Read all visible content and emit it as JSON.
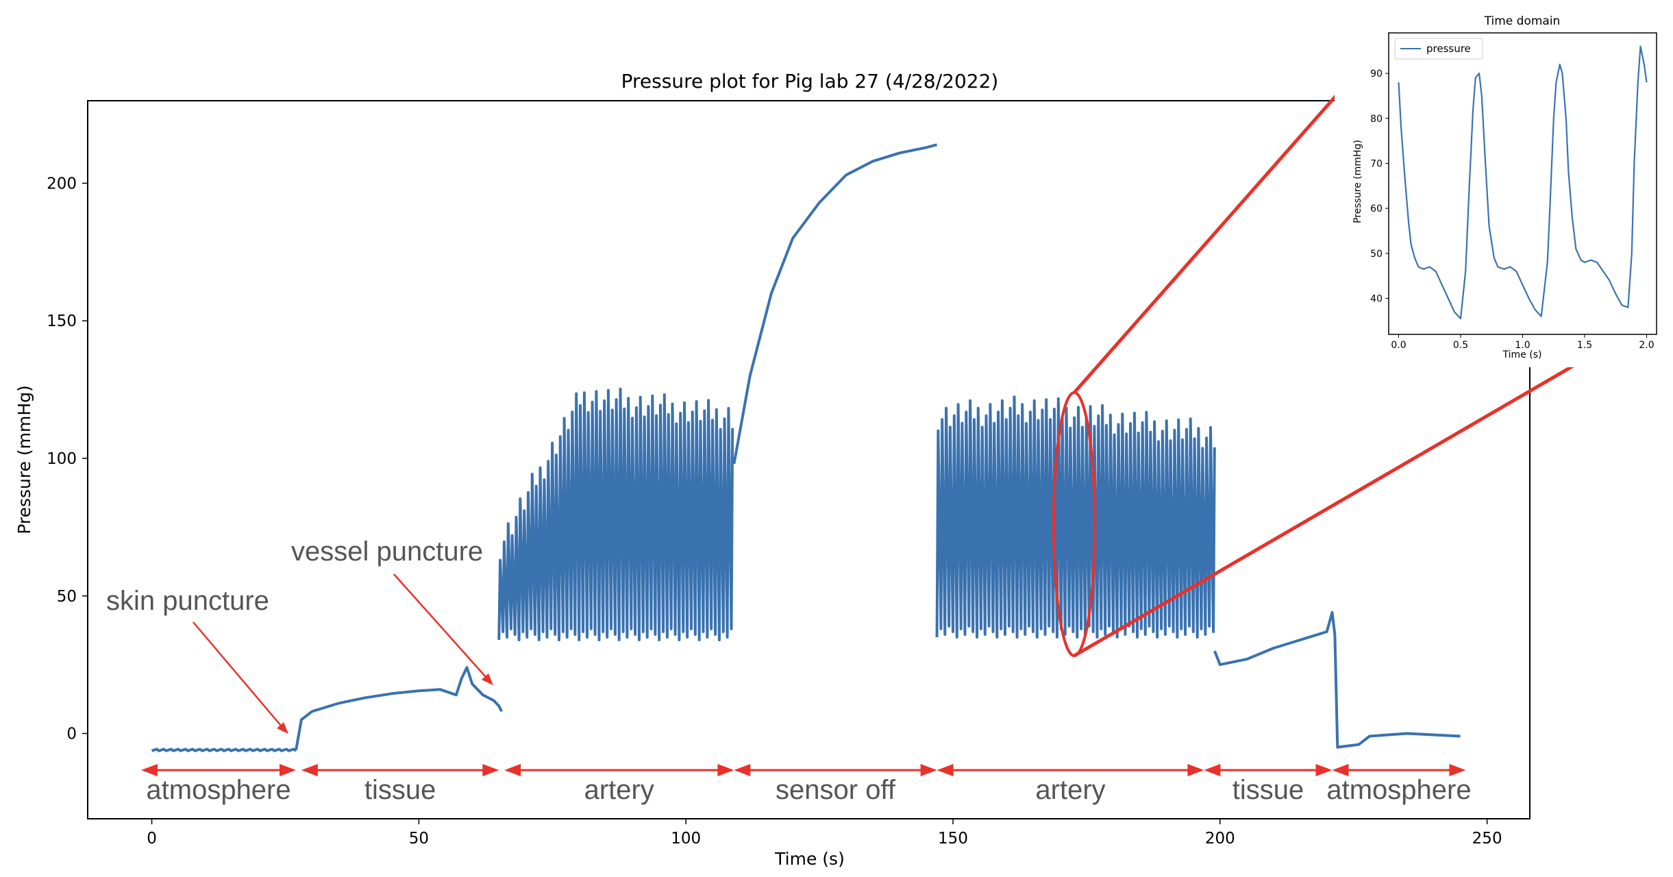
{
  "colors": {
    "line": "#3a72b0",
    "annotation": "#e8312a",
    "annotation_text": "#555555",
    "axis": "#000000"
  },
  "chart_data": [
    {
      "type": "line",
      "title": "Pressure plot for Pig lab 27 (4/28/2022)",
      "xlabel": "Time (s)",
      "ylabel": "Pressure (mmHg)",
      "xlim": [
        -12,
        258
      ],
      "ylim": [
        -31,
        230
      ],
      "xticks": [
        0,
        50,
        100,
        150,
        200,
        250
      ],
      "yticks": [
        0,
        50,
        100,
        150,
        200
      ],
      "grid": false,
      "series": [
        {
          "segments": [
            {
              "phase": "atmosphere",
              "t_start": 0,
              "t_end": 27,
              "baseline": -6
            },
            {
              "phase": "tissue",
              "t_start": 27,
              "t_end": 65,
              "points": [
                [
                  27,
                  -6
                ],
                [
                  28,
                  5
                ],
                [
                  30,
                  8
                ],
                [
                  35,
                  11
                ],
                [
                  40,
                  13
                ],
                [
                  45,
                  14.5
                ],
                [
                  50,
                  15.5
                ],
                [
                  54,
                  16
                ],
                [
                  57,
                  14
                ],
                [
                  58,
                  20
                ],
                [
                  59,
                  24
                ],
                [
                  60,
                  18
                ],
                [
                  62,
                  14
                ],
                [
                  64,
                  12
                ],
                [
                  65,
                  10
                ],
                [
                  65.5,
                  8
                ]
              ]
            },
            {
              "phase": "artery",
              "t_start": 65,
              "t_end": 109,
              "systolic_start": 68,
              "systolic_peak": 122,
              "systolic_end": 115,
              "diastolic": 36,
              "beat_period": 0.75
            },
            {
              "phase": "sensor off",
              "t_start": 109,
              "t_end": 147,
              "points": [
                [
                  109,
                  98
                ],
                [
                  112,
                  130
                ],
                [
                  116,
                  160
                ],
                [
                  120,
                  180
                ],
                [
                  125,
                  193
                ],
                [
                  130,
                  203
                ],
                [
                  135,
                  208
                ],
                [
                  140,
                  211
                ],
                [
                  145,
                  213
                ],
                [
                  147,
                  214
                ]
              ]
            },
            {
              "phase": "artery",
              "t_start": 147,
              "t_end": 199,
              "systolic_start": 115,
              "systolic_peak": 118,
              "systolic_end": 108,
              "diastolic": 37,
              "beat_period": 0.75
            },
            {
              "phase": "tissue",
              "t_start": 199,
              "t_end": 221.5,
              "points": [
                [
                  199,
                  30
                ],
                [
                  200,
                  25
                ],
                [
                  205,
                  27
                ],
                [
                  210,
                  31
                ],
                [
                  215,
                  34
                ],
                [
                  220,
                  37
                ],
                [
                  221,
                  44
                ],
                [
                  221.5,
                  36
                ]
              ]
            },
            {
              "phase": "atmosphere",
              "t_start": 221.5,
              "t_end": 245,
              "points": [
                [
                  221.5,
                  36
                ],
                [
                  222,
                  -5
                ],
                [
                  226,
                  -4
                ],
                [
                  228,
                  -1
                ],
                [
                  235,
                  0
                ],
                [
                  245,
                  -1
                ]
              ]
            }
          ]
        }
      ],
      "annotations": {
        "skin_puncture": "skin puncture",
        "vessel_puncture": "vessel puncture"
      },
      "phases": [
        {
          "label": "atmosphere",
          "x_start": -2,
          "x_end": 27
        },
        {
          "label": "tissue",
          "x_start": 28,
          "x_end": 65
        },
        {
          "label": "artery",
          "x_start": 66,
          "x_end": 109
        },
        {
          "label": "sensor off",
          "x_start": 109,
          "x_end": 147
        },
        {
          "label": "artery",
          "x_start": 147,
          "x_end": 197
        },
        {
          "label": "tissue",
          "x_start": 197,
          "x_end": 221
        },
        {
          "label": "atmosphere",
          "x_start": 221,
          "x_end": 246
        }
      ],
      "highlight": {
        "center_x": 172,
        "y_range": [
          27,
          122
        ]
      }
    },
    {
      "type": "line",
      "title": "Time domain",
      "xlabel": "Time (s)",
      "ylabel": "Pressure (mmHg)",
      "xlim": [
        -0.08,
        2.08
      ],
      "ylim": [
        32,
        99
      ],
      "xticks": [
        0.0,
        0.5,
        1.0,
        1.5,
        2.0
      ],
      "yticks": [
        40,
        50,
        60,
        70,
        80,
        90
      ],
      "legend": {
        "position": "top-left",
        "entries": [
          "pressure"
        ]
      },
      "series": [
        {
          "name": "pressure",
          "x": [
            0.0,
            0.02,
            0.05,
            0.08,
            0.1,
            0.13,
            0.16,
            0.2,
            0.25,
            0.3,
            0.35,
            0.4,
            0.45,
            0.5,
            0.54,
            0.57,
            0.6,
            0.62,
            0.65,
            0.67,
            0.7,
            0.73,
            0.77,
            0.8,
            0.85,
            0.9,
            0.95,
            1.0,
            1.05,
            1.1,
            1.15,
            1.2,
            1.22,
            1.25,
            1.27,
            1.3,
            1.32,
            1.35,
            1.37,
            1.4,
            1.43,
            1.47,
            1.5,
            1.55,
            1.6,
            1.65,
            1.7,
            1.75,
            1.8,
            1.85,
            1.88,
            1.9,
            1.93,
            1.95,
            1.98,
            2.0
          ],
          "y": [
            88,
            78,
            67,
            57,
            52,
            49,
            47,
            46.5,
            47,
            46,
            43,
            40,
            37,
            35.5,
            46,
            65,
            82,
            89,
            90,
            85,
            70,
            56,
            49,
            47,
            46.5,
            47,
            46,
            43,
            40,
            37.5,
            36,
            48,
            60,
            80,
            88,
            92,
            90,
            80,
            68,
            58,
            51,
            48.5,
            48,
            48.5,
            48,
            46,
            44,
            41,
            38.5,
            38,
            50,
            70,
            88,
            96,
            92,
            88
          ]
        }
      ]
    }
  ]
}
